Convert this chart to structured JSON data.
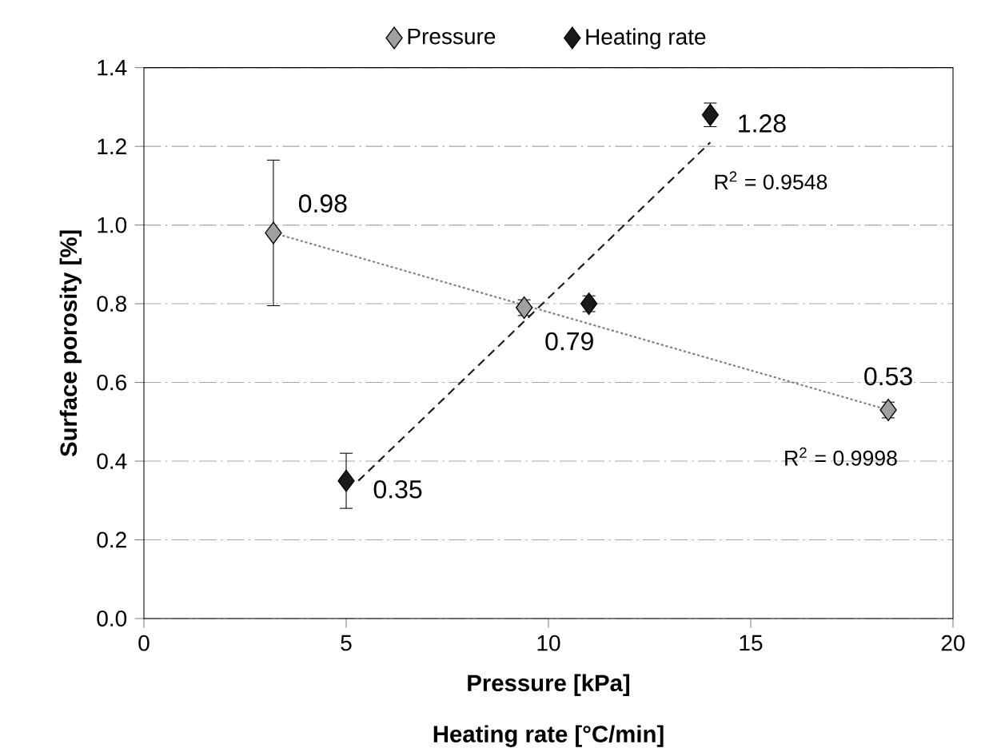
{
  "chart_data": {
    "type": "scatter",
    "xlabel": "Pressure [kPa]",
    "ylabel": "Surface porosity [%]",
    "xlim": [
      0,
      20
    ],
    "ylim": [
      0,
      1.4
    ],
    "xticks": [
      0,
      5,
      10,
      15,
      20
    ],
    "yticks": [
      {
        "value": 0,
        "label": "0.0"
      },
      0.2,
      0.4,
      0.6,
      0.8,
      {
        "value": 1,
        "label": "1.0"
      },
      1.2,
      1.4
    ],
    "grid": "y",
    "legend": "top",
    "series": [
      {
        "name": "Pressure",
        "color": "#a0a0a0",
        "marker": "diamond",
        "x": [
          3.2,
          9.4,
          18.4
        ],
        "values": [
          0.98,
          0.79,
          0.53
        ],
        "errors": [
          0.185,
          0.02,
          0.02
        ],
        "value_labels": [
          "0.98",
          "0.79",
          "0.53"
        ]
      },
      {
        "name": "Heating rate",
        "color": "#1a1a1a",
        "marker": "diamond",
        "x": [
          5,
          11,
          14
        ],
        "values": [
          0.35,
          0.8,
          1.28
        ],
        "errors": [
          0.07,
          0.02,
          0.03
        ],
        "value_labels": [
          "0.35",
          null,
          "1.28"
        ]
      },
      {
        "type": "line",
        "color": "#808080",
        "line_style": "dotted",
        "marker": "none",
        "x": [
          3.2,
          18.4
        ],
        "values": [
          0.98,
          0.53
        ]
      },
      {
        "type": "line",
        "color": "#1a1a1a",
        "line_style": "dashed",
        "marker": "none",
        "x": [
          5.3,
          14
        ],
        "values": [
          0.35,
          1.21
        ]
      }
    ],
    "annotations": [
      {
        "text": "R$^{2}$ = 0.9548",
        "x": 14,
        "y": 1.21
      },
      {
        "text": "R$^{2}$ = 0.9998",
        "x": 18.4,
        "y": 0.53
      },
      "Heating rate [°C/min]"
    ]
  }
}
